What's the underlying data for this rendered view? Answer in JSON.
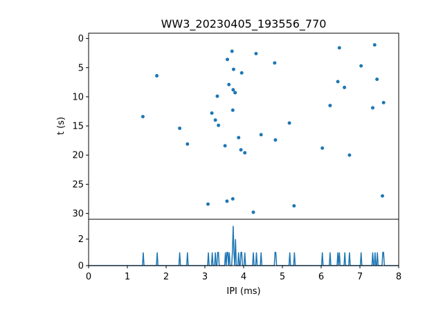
{
  "chart_data": [
    {
      "type": "scatter",
      "title": "WW3_20230405_193556_770",
      "xlabel": "",
      "ylabel": "t (s)",
      "xlim": [
        0,
        8
      ],
      "ylim": [
        31,
        -0.9
      ],
      "y_inverted": true,
      "yticks": [
        0,
        5,
        10,
        15,
        20,
        25,
        30
      ],
      "ytick_labels": [
        "0",
        "5",
        "10",
        "15",
        "20",
        "25",
        "30"
      ],
      "grid": false,
      "color": "#1f77b4",
      "series": [
        {
          "x": [
            1.4,
            1.76,
            2.35,
            2.55,
            3.08,
            3.18,
            3.27,
            3.32,
            3.35,
            3.52,
            3.57,
            3.58,
            3.62,
            3.7,
            3.72,
            3.72,
            3.73,
            3.74,
            3.78,
            3.78,
            3.87,
            3.93,
            3.95,
            4.03,
            4.25,
            4.32,
            4.45,
            4.8,
            4.82,
            5.18,
            5.3,
            6.03,
            6.23,
            6.43,
            6.47,
            6.6,
            6.73,
            7.03,
            7.33,
            7.38,
            7.44,
            7.58,
            7.61
          ],
          "y": [
            13.4,
            6.4,
            15.4,
            18.1,
            28.4,
            12.8,
            14.0,
            9.9,
            14.9,
            18.4,
            27.9,
            3.6,
            7.9,
            2.2,
            12.3,
            27.5,
            8.8,
            5.3,
            9.3,
            9.3,
            17.0,
            19.1,
            5.9,
            19.6,
            29.8,
            2.6,
            16.5,
            4.2,
            17.4,
            14.5,
            28.7,
            18.8,
            11.5,
            7.4,
            1.6,
            8.4,
            20.0,
            4.7,
            11.9,
            1.1,
            7.0,
            27.0,
            11.0
          ]
        }
      ]
    },
    {
      "type": "line",
      "title": "",
      "xlabel": "IPI (ms)",
      "ylabel": "",
      "xlim": [
        0,
        8
      ],
      "ylim": [
        0,
        3.5
      ],
      "xticks": [
        0,
        1,
        2,
        3,
        4,
        5,
        6,
        7,
        8
      ],
      "xtick_labels": [
        "0",
        "1",
        "2",
        "3",
        "4",
        "5",
        "6",
        "7",
        "8"
      ],
      "yticks": [
        0,
        2
      ],
      "ytick_labels": [
        "0",
        "2"
      ],
      "grid": false,
      "color": "#1f77b4",
      "bin_width": 0.02,
      "series": [
        {
          "values": "histogram counts of the scatter x values (IPI)"
        }
      ]
    }
  ]
}
